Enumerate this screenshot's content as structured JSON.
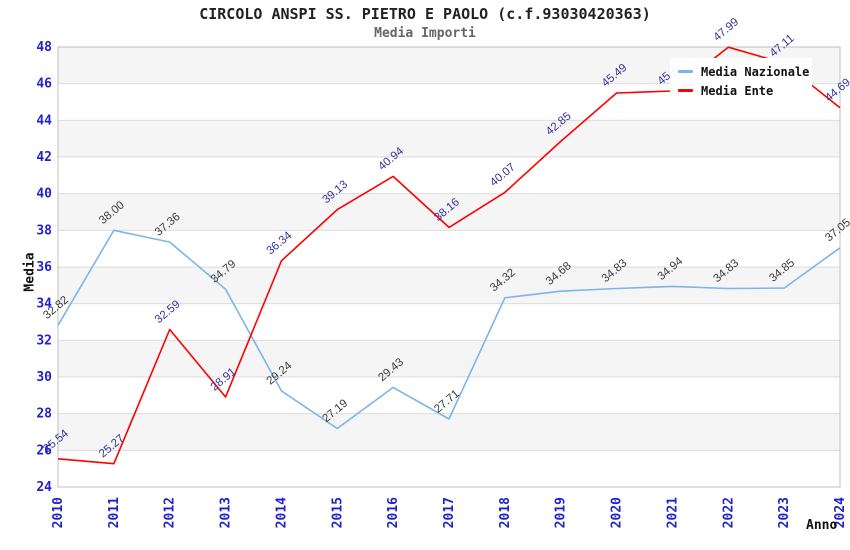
{
  "header": {
    "title": "CIRCOLO ANSPI SS. PIETRO E PAOLO (c.f.93030420363)",
    "subtitle": "Media Importi"
  },
  "chart_data": {
    "type": "line",
    "title": "CIRCOLO ANSPI SS. PIETRO E PAOLO (c.f.93030420363)",
    "subtitle": "Media Importi",
    "xlabel": "Anno",
    "ylabel": "Media",
    "categories": [
      "2010",
      "2011",
      "2012",
      "2013",
      "2014",
      "2015",
      "2016",
      "2017",
      "2018",
      "2019",
      "2020",
      "2021",
      "2022",
      "2023",
      "2024"
    ],
    "series": [
      {
        "name": "Media Nazionale",
        "color": "#7cb5ec",
        "label_color": "#3a3a3a",
        "values": [
          32.82,
          38.0,
          37.36,
          34.79,
          29.24,
          27.19,
          29.43,
          27.71,
          34.32,
          34.68,
          34.83,
          34.94,
          34.83,
          34.85,
          37.05
        ]
      },
      {
        "name": "Media Ente",
        "color": "#ff0000",
        "label_color": "#333399",
        "values": [
          25.54,
          25.27,
          32.59,
          28.91,
          36.34,
          39.13,
          40.94,
          38.16,
          40.07,
          42.85,
          45.49,
          45.6,
          47.99,
          47.11,
          44.69
        ]
      }
    ],
    "ylim": [
      24,
      48
    ],
    "ytick_step": 2,
    "grid": "horizontal, alternating shaded bands every 2 units",
    "legend_position": "top-right",
    "colors": {
      "tick_label": "#2222cc",
      "band_fill": "#f5f5f5",
      "gridline": "#dcdcdc",
      "plot_border": "#c0c0c0",
      "axis_title": "#111111"
    }
  }
}
